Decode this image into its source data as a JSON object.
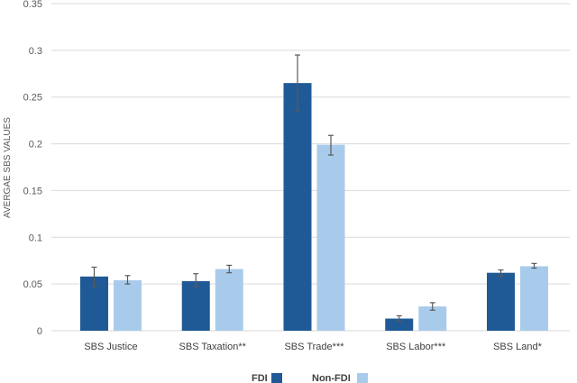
{
  "chart_data": {
    "type": "bar",
    "title": "",
    "xlabel": "",
    "ylabel": "AVERGAE SBS VALUES",
    "ylim": [
      0,
      0.35
    ],
    "yticks": [
      "0",
      "0.05",
      "0.1",
      "0.15",
      "0.2",
      "0.25",
      "0.3",
      "0.35"
    ],
    "grid": true,
    "legend_position": "bottom",
    "categories": [
      "SBS Justice",
      "SBS Taxation**",
      "SBS Trade***",
      "SBS Labor***",
      "SBS Land*"
    ],
    "series": [
      {
        "name": "FDI",
        "color": "#1f5a96",
        "values": [
          0.058,
          0.053,
          0.265,
          0.013,
          0.062
        ],
        "error_low": [
          0.047,
          0.047,
          0.235,
          0.01,
          0.058
        ],
        "error_high": [
          0.068,
          0.061,
          0.295,
          0.016,
          0.065
        ]
      },
      {
        "name": "Non-FDI",
        "color": "#a9cbeb",
        "values": [
          0.054,
          0.066,
          0.199,
          0.026,
          0.069
        ],
        "error_low": [
          0.05,
          0.062,
          0.188,
          0.022,
          0.067
        ],
        "error_high": [
          0.059,
          0.07,
          0.209,
          0.03,
          0.072
        ]
      }
    ]
  },
  "colors": {
    "grid": "#d9d9d9",
    "error_bar": "#595959",
    "axis_text": "#595959"
  }
}
